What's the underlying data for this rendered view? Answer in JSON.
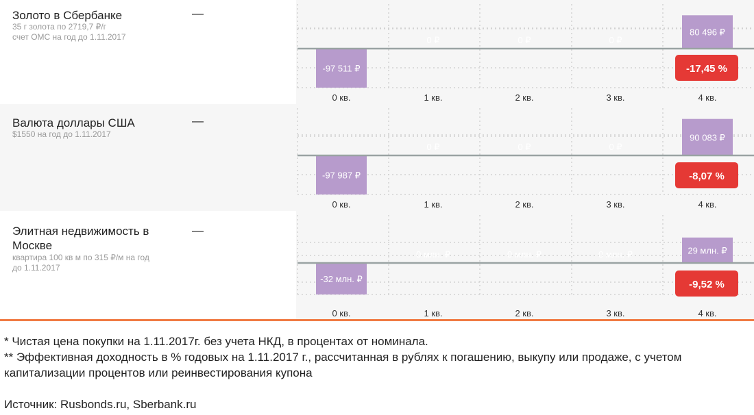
{
  "rows": [
    {
      "title": "Золото в Сбербанке",
      "subtitle": "35 г золота по 2719,7 ₽/г\nсчет ОМС на год до 1.11.2017",
      "dash": "—",
      "badge": "-17,45 %"
    },
    {
      "title": "Валюта доллары США",
      "subtitle": "$1550 на год до 1.11.2017",
      "dash": "—",
      "badge": "-8,07 %"
    },
    {
      "title": "Элитная недвижимость в Москве",
      "subtitle": "квартира 100 кв м по 315 ₽/м на год до 1.11.2017",
      "dash": "—",
      "badge": "-9,52 %"
    }
  ],
  "chart_data": [
    {
      "type": "bar",
      "categories": [
        "0 кв.",
        "1 кв.",
        "2 кв.",
        "3 кв.",
        "4 кв."
      ],
      "values": [
        -97511,
        0,
        0,
        0,
        80496
      ],
      "value_labels": [
        "-97 511 ₽",
        "0 ₽",
        "0 ₽",
        "0 ₽",
        "80 496 ₽"
      ]
    },
    {
      "type": "bar",
      "categories": [
        "0 кв.",
        "1 кв.",
        "2 кв.",
        "3 кв.",
        "4 кв."
      ],
      "values": [
        -97987,
        0,
        0,
        0,
        90083
      ],
      "value_labels": [
        "-97 987 ₽",
        "0 ₽",
        "0 ₽",
        "0 ₽",
        "90 083 ₽"
      ]
    },
    {
      "type": "bar",
      "categories": [
        "0 кв.",
        "1 кв.",
        "2 кв.",
        "3 кв.",
        "4 кв."
      ],
      "values": [
        -32,
        0,
        0,
        0,
        29
      ],
      "value_labels": [
        "-32 млн. ₽",
        "0 млн. ₽",
        "0 млн. ₽",
        "0 млн. ₽",
        "29 млн. ₽"
      ]
    }
  ],
  "colors": {
    "bar": "#b79bcc",
    "badge": "#e53935",
    "divider": "#f07a43",
    "grid": "#d2d2d2",
    "zero_line": "#9aa3a3"
  },
  "notes": {
    "line1": "* Чистая цена покупки на 1.11.2017г. без учета НКД, в процентах от номинала.",
    "line2": "** Эффективная доходность в % годовых на 1.11.2017 г., рассчитанная в рублях к погашению, выкупу или продаже, с учетом капитализации процентов или реинвестирования купона",
    "source": "Источник: Rusbonds.ru, Sberbank.ru"
  }
}
